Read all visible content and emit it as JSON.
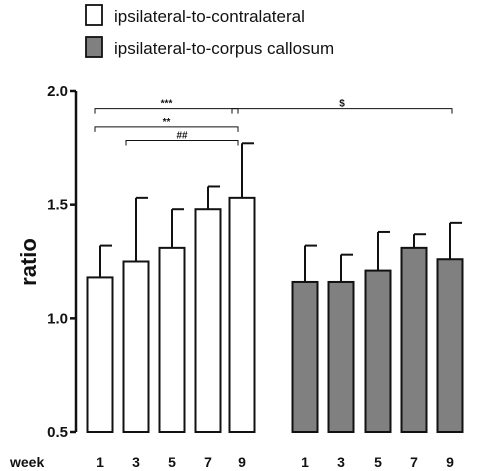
{
  "chart_data": {
    "type": "bar",
    "ylabel": "ratio",
    "xlabel": "week",
    "ylim": [
      0.5,
      2.0
    ],
    "yticks": [
      "0.5",
      "1.0",
      "1.5",
      "2.0"
    ],
    "legend_position": "top-left",
    "series": [
      {
        "name": "ipsilateral-to-contralateral",
        "color": "#ffffff",
        "categories": [
          "1",
          "3",
          "5",
          "7",
          "9"
        ],
        "values": [
          1.18,
          1.25,
          1.31,
          1.48,
          1.53
        ],
        "errors": [
          0.14,
          0.28,
          0.17,
          0.1,
          0.24
        ]
      },
      {
        "name": "ipsilateral-to-corpus callosum",
        "color": "#808080",
        "categories": [
          "1",
          "3",
          "5",
          "7",
          "9"
        ],
        "values": [
          1.16,
          1.16,
          1.21,
          1.31,
          1.26
        ],
        "errors": [
          0.16,
          0.12,
          0.17,
          0.06,
          0.16
        ]
      }
    ],
    "significance": [
      {
        "label": "***",
        "from": [
          0,
          0
        ],
        "to": [
          0,
          4
        ],
        "y": 1.975
      },
      {
        "label": "**",
        "from": [
          0,
          0
        ],
        "to": [
          0,
          4
        ],
        "y": 1.895
      },
      {
        "label": "##",
        "from": [
          0,
          1
        ],
        "to": [
          0,
          4
        ],
        "y": 1.835
      },
      {
        "label": "$",
        "from": [
          0,
          4
        ],
        "to": [
          1,
          4
        ],
        "y": 1.975
      }
    ]
  }
}
